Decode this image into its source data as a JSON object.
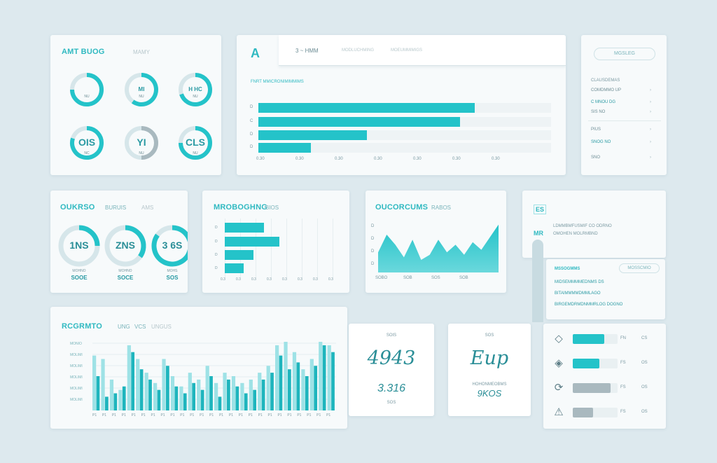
{
  "colors": {
    "accent": "#24c3c9",
    "accent_light": "#9ee2e6",
    "grey": "#a9b9bf",
    "bg": "#dde9ee",
    "card": "#f7fafb"
  },
  "card1": {
    "title": "AMT BUOG",
    "subtitle": "MAMY",
    "gauges": [
      {
        "label": "",
        "sub": "NU",
        "value": 0.75
      },
      {
        "label": "MI",
        "sub": "NU",
        "value": 0.6
      },
      {
        "label": "H HC",
        "sub": "NU",
        "value": 0.7
      },
      {
        "label": "OIS",
        "sub": "NC",
        "value": 0.8
      },
      {
        "label": "YI",
        "sub": "NU",
        "value": 0.5
      },
      {
        "label": "CLS",
        "sub": "NU",
        "value": 0.75
      }
    ]
  },
  "card2": {
    "logo": "A",
    "tab_active": "3 ~ HMM",
    "tab_2": "MODLUCHMING",
    "tab_3": "MOEUMMIMIGS",
    "caption": "FNRT MMICRONIMIMMIMS",
    "bars": [
      {
        "label": "D",
        "value": 0.74
      },
      {
        "label": "C",
        "value": 0.69
      },
      {
        "label": "D",
        "value": 0.37
      },
      {
        "label": "D",
        "value": 0.18
      }
    ],
    "x_ticks": [
      "0.30",
      "0.30",
      "0.30",
      "0.30",
      "0.30",
      "0.30",
      "0.30"
    ]
  },
  "card3": {
    "button": "MGSLEG",
    "header": "CLAUSDEMAS",
    "rows": [
      {
        "label": "COMDMMO UP",
        "value": ""
      },
      {
        "label": "C MNOU DG",
        "value": ""
      },
      {
        "label": "SIS NO",
        "value": ""
      },
      {
        "label": "PIUS",
        "value": ""
      },
      {
        "label": "SNOG NO",
        "value": ""
      },
      {
        "label": "SNO",
        "value": ""
      }
    ]
  },
  "card4": {
    "title": "OUKRSO",
    "subtitle": "BURUIS",
    "tag": "AMS",
    "donuts": [
      {
        "value_text": "1NS",
        "caption1": "MOHNO",
        "caption2": "SOOE",
        "value": 0.25
      },
      {
        "value_text": "ZNS",
        "caption1": "MOHNO",
        "caption2": "SOCE",
        "value": 0.35
      },
      {
        "value_text": "3 6S",
        "caption1": "MOHS",
        "caption2": "SOS",
        "value": 0.85
      }
    ]
  },
  "card5": {
    "title": "MROBOGHNG",
    "subtitle": "BIOS",
    "bars": [
      {
        "label": "D",
        "value": 0.33
      },
      {
        "label": "D",
        "value": 0.46
      },
      {
        "label": "D",
        "value": 0.24
      },
      {
        "label": "D",
        "value": 0.16
      }
    ],
    "x_ticks": [
      "0.3",
      "0.3",
      "0.3",
      "0.3",
      "0.3",
      "0.3",
      "0.3",
      "0.3"
    ]
  },
  "card6": {
    "title": "OUCORCUMS",
    "subtitle": "RABOS",
    "y_ticks": [
      "D",
      "D",
      "D",
      "D"
    ],
    "x_ticks": [
      "SOBO",
      "SOB",
      "SOS",
      "SOB"
    ],
    "points": [
      0.4,
      0.75,
      0.55,
      0.3,
      0.65,
      0.25,
      0.35,
      0.65,
      0.4,
      0.55,
      0.35,
      0.6,
      0.45,
      0.7,
      0.95
    ]
  },
  "card7": {
    "logo": "ES",
    "tag": "MR",
    "row1": "LDMMBMFUSMIF CO ODRNO",
    "row2": "OMOHEN MOLRMBND",
    "panel_title": "MSSOGMMS",
    "panel_button": "MOSSCMIO",
    "panel_rows": [
      "MIDSEMMMMEDNMS DS",
      "BITAIMMMMDMMLAGO",
      "BIRGEMDRMDNMMRLOG DOGNO"
    ]
  },
  "card8": {
    "title": "RCGRMTO",
    "subtitle_1": "UNG",
    "subtitle_2": "VCS",
    "subtitle_3": "UNGUS",
    "y_ticks": [
      "MONIO",
      "MOLIMI",
      "MOLIMI",
      "MOLIMI",
      "MOLIMI",
      "MOLIMI"
    ],
    "bars": [
      {
        "a": 0.5,
        "b": 0.8
      },
      {
        "a": 0.2,
        "b": 0.75
      },
      {
        "a": 0.25,
        "b": 0.45
      },
      {
        "a": 0.35,
        "b": 0.3
      },
      {
        "a": 0.85,
        "b": 0.95
      },
      {
        "a": 0.6,
        "b": 0.75
      },
      {
        "a": 0.45,
        "b": 0.55
      },
      {
        "a": 0.3,
        "b": 0.4
      },
      {
        "a": 0.65,
        "b": 0.75
      },
      {
        "a": 0.35,
        "b": 0.5
      },
      {
        "a": 0.25,
        "b": 0.35
      },
      {
        "a": 0.4,
        "b": 0.55
      },
      {
        "a": 0.3,
        "b": 0.45
      },
      {
        "a": 0.5,
        "b": 0.65
      },
      {
        "a": 0.2,
        "b": 0.4
      },
      {
        "a": 0.45,
        "b": 0.55
      },
      {
        "a": 0.35,
        "b": 0.5
      },
      {
        "a": 0.25,
        "b": 0.4
      },
      {
        "a": 0.3,
        "b": 0.45
      },
      {
        "a": 0.45,
        "b": 0.55
      },
      {
        "a": 0.55,
        "b": 0.65
      },
      {
        "a": 0.8,
        "b": 0.95
      },
      {
        "a": 0.6,
        "b": 1.0
      },
      {
        "a": 0.7,
        "b": 0.85
      },
      {
        "a": 0.5,
        "b": 0.6
      },
      {
        "a": 0.65,
        "b": 0.75
      },
      {
        "a": 0.95,
        "b": 1.0
      },
      {
        "a": 0.85,
        "b": 0.95
      }
    ],
    "x_ticks": [
      "P1",
      "P1",
      "P1",
      "P1",
      "P1",
      "P1",
      "P1",
      "P1",
      "P1",
      "P1",
      "P1",
      "P1",
      "P1",
      "P1",
      "P1",
      "P1",
      "P1",
      "P1",
      "P1",
      "P1",
      "P1",
      "P1",
      "P1",
      "P1",
      "P1"
    ]
  },
  "stat1": {
    "label": "SOIS",
    "big": "4943",
    "sub": "3.316",
    "foot": "SOS"
  },
  "stat2": {
    "label": "SOS",
    "big": "Eup",
    "sub": "HOHONMEOBMS",
    "foot": "9KOS"
  },
  "list": {
    "items": [
      {
        "icon": "alert-icon",
        "glyph": "◇",
        "value": 0.7,
        "color": "#24c3c9",
        "v1": "FN",
        "v2": "CS"
      },
      {
        "icon": "diamond-icon",
        "glyph": "◈",
        "value": 0.6,
        "color": "#24c3c9",
        "v1": "FS",
        "v2": "OS"
      },
      {
        "icon": "refresh-icon",
        "glyph": "⟳",
        "value": 0.85,
        "color": "#a9b9bf",
        "v1": "FS",
        "v2": "OS"
      },
      {
        "icon": "warning-icon",
        "glyph": "⚠",
        "value": 0.45,
        "color": "#a9b9bf",
        "v1": "FS",
        "v2": "OS"
      }
    ]
  }
}
